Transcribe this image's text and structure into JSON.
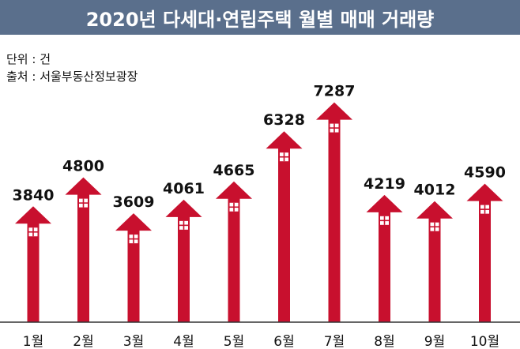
{
  "title": "2020년 다세대·연립주택 월별 매매 거래량",
  "unit_label": "단위 : 건",
  "source_label": "출처 : 서울부동산정보광장",
  "colors": {
    "header_bg": "#5a6f8c",
    "bar": "#c8102e",
    "window": "#ffffff",
    "baseline": "#333333"
  },
  "chart_data": {
    "type": "bar",
    "title": "2020년 다세대·연립주택 월별 매매 거래량",
    "categories": [
      "1월",
      "2월",
      "3월",
      "4월",
      "5월",
      "6월",
      "7월",
      "8월",
      "9월",
      "10월"
    ],
    "values": [
      3840,
      4800,
      3609,
      4061,
      4665,
      6328,
      7287,
      4219,
      4012,
      4590
    ],
    "data_labels": [
      "3840",
      "4800",
      "3609",
      "4061",
      "4665",
      "6328",
      "7287",
      "4219",
      "4012",
      "4590"
    ],
    "xlabel": "",
    "ylabel": "",
    "unit": "건",
    "ylim": [
      0,
      7800
    ],
    "grid": false,
    "legend": "none"
  }
}
